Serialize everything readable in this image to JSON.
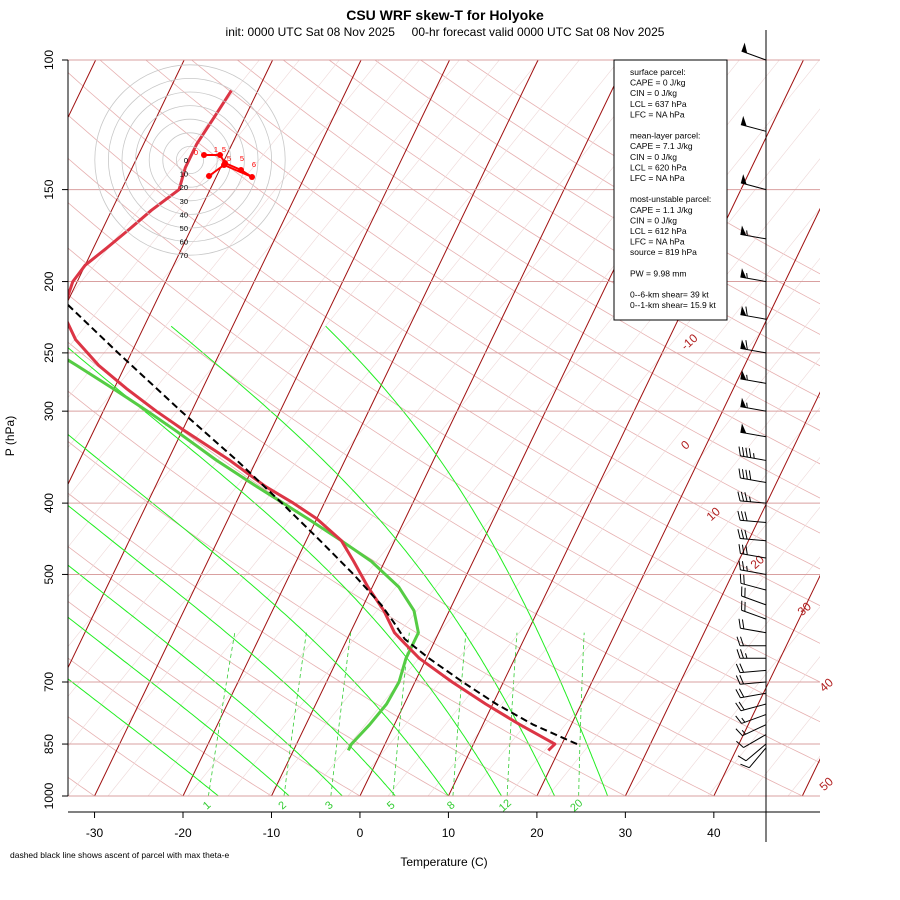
{
  "title": "CSU WRF skew-T for Holyoke",
  "subtitle": "init: 0000 UTC Sat 08 Nov 2025     00-hr forecast valid 0000 UTC Sat 08 Nov 2025",
  "footnote": "dashed black line shows ascent of parcel with max theta-e",
  "params": [
    "surface parcel:",
    "CAPE = 0 J/kg",
    "CIN = 0 J/kg",
    "LCL = 637 hPa",
    "LFC = NA hPa",
    "",
    "mean-layer parcel:",
    "CAPE = 7.1 J/kg",
    "CIN = 0 J/kg",
    "LCL = 620 hPa",
    "LFC = NA hPa",
    "",
    "most-unstable parcel:",
    "CAPE = 1.1 J/kg",
    "CIN = 0 J/kg",
    "LCL = 612 hPa",
    "LFC = NA hPa",
    "source = 819 hPa",
    "",
    "PW =  9.98 mm",
    "",
    "0--6-km shear= 39 kt",
    "0--1-km shear= 15.9 kt"
  ],
  "colors": {
    "temperature": "#dc3545",
    "dewpoint": "#55cc44",
    "parcel": "#000000",
    "isotherm": "#a01010",
    "isobar": "#d9a0a0",
    "dry_adiabat": "#e6b0b0",
    "moist_adiabat": "#22ee22",
    "mixing_ratio": "#33cc33",
    "hodograph": "#ff0000"
  },
  "hodograph": {
    "ring_labels": [
      "0",
      "10",
      "20",
      "30",
      "40",
      "50",
      "60",
      "70"
    ],
    "point_labels": [
      "0",
      "1",
      "5",
      "5",
      "5",
      "6"
    ]
  },
  "chart_data": {
    "type": "skew-t",
    "xlabel": "Temperature (C)",
    "ylabel": "P (hPa)",
    "xlim": [
      -33,
      52
    ],
    "ylim": [
      1000,
      100
    ],
    "x_ticks": [
      -30,
      -20,
      -10,
      0,
      10,
      20,
      30,
      40
    ],
    "y_ticks": [
      100,
      150,
      200,
      250,
      300,
      400,
      500,
      700,
      850,
      1000
    ],
    "isotherm_labels": [
      "-10",
      "0",
      "10",
      "20",
      "30",
      "40",
      "50"
    ],
    "mixing_ratio_labels": [
      "1",
      "2",
      "3",
      "5",
      "8",
      "12",
      "20"
    ],
    "temperature": {
      "pressure": [
        867,
        850,
        800,
        750,
        700,
        650,
        620,
        600,
        560,
        520,
        480,
        450,
        420,
        400,
        380,
        350,
        320,
        300,
        280,
        260,
        240,
        220,
        200,
        190,
        180,
        170,
        160,
        150,
        140,
        130,
        120,
        110
      ],
      "temp_c": [
        18.8,
        19.2,
        14.2,
        9.2,
        4.2,
        -0.8,
        -3.3,
        -5.0,
        -7.4,
        -10.5,
        -13.5,
        -16.0,
        -20.0,
        -23.5,
        -27.5,
        -33.0,
        -39.5,
        -44.0,
        -48.5,
        -53.0,
        -57.0,
        -60.0,
        -60.5,
        -60.0,
        -58.5,
        -57.0,
        -55.5,
        -53.5,
        -54.0,
        -54.0,
        -53.5,
        -53.0
      ]
    },
    "dewpoint": {
      "pressure": [
        867,
        850,
        800,
        750,
        700,
        650,
        600,
        560,
        520,
        480,
        450,
        420,
        380,
        350,
        320,
        300,
        280,
        260,
        245,
        240,
        230,
        220,
        210,
        200,
        190,
        180,
        170,
        160
      ],
      "dewpoint_c": [
        -3.8,
        -3.8,
        -2.8,
        -2.0,
        -1.8,
        -2.3,
        -2.3,
        -4.0,
        -7.0,
        -11.5,
        -16.0,
        -21.0,
        -28.5,
        -34.5,
        -40.5,
        -45.0,
        -50.0,
        -55.5,
        -60.0,
        -60.5,
        -61.5,
        -62.5,
        -63.5,
        -64.0,
        -64.5,
        -65.0,
        -66.0,
        -66.5
      ]
    },
    "parcel": {
      "pressure": [
        850,
        800,
        750,
        700,
        650,
        612,
        580,
        550,
        500,
        450,
        400,
        350,
        300,
        250,
        200,
        150,
        120,
        100
      ],
      "temp_c": [
        21.7,
        15.7,
        10.4,
        5.4,
        0.3,
        -3.5,
        -5.7,
        -8.0,
        -12.8,
        -18.4,
        -24.8,
        -32.2,
        -41.2,
        -51.5,
        -63.8,
        -78.0,
        -86.0,
        -89.5
      ]
    },
    "wind_barbs": {
      "pressure": [
        860,
        850,
        825,
        800,
        775,
        750,
        725,
        700,
        675,
        650,
        625,
        600,
        575,
        550,
        525,
        500,
        475,
        450,
        425,
        400,
        375,
        350,
        325,
        300,
        275,
        250,
        225,
        200,
        175,
        150,
        125,
        100
      ],
      "speed_kt": [
        8,
        10,
        12,
        14,
        16,
        18,
        20,
        22,
        22,
        24,
        22,
        20,
        18,
        20,
        22,
        25,
        28,
        30,
        32,
        35,
        40,
        45,
        50,
        55,
        55,
        60,
        60,
        55,
        55,
        50,
        50,
        50
      ],
      "direction_deg": [
        220,
        230,
        240,
        245,
        250,
        255,
        260,
        265,
        265,
        270,
        270,
        280,
        290,
        290,
        285,
        280,
        280,
        275,
        275,
        275,
        280,
        280,
        280,
        280,
        280,
        280,
        280,
        280,
        280,
        285,
        285,
        290
      ]
    }
  }
}
